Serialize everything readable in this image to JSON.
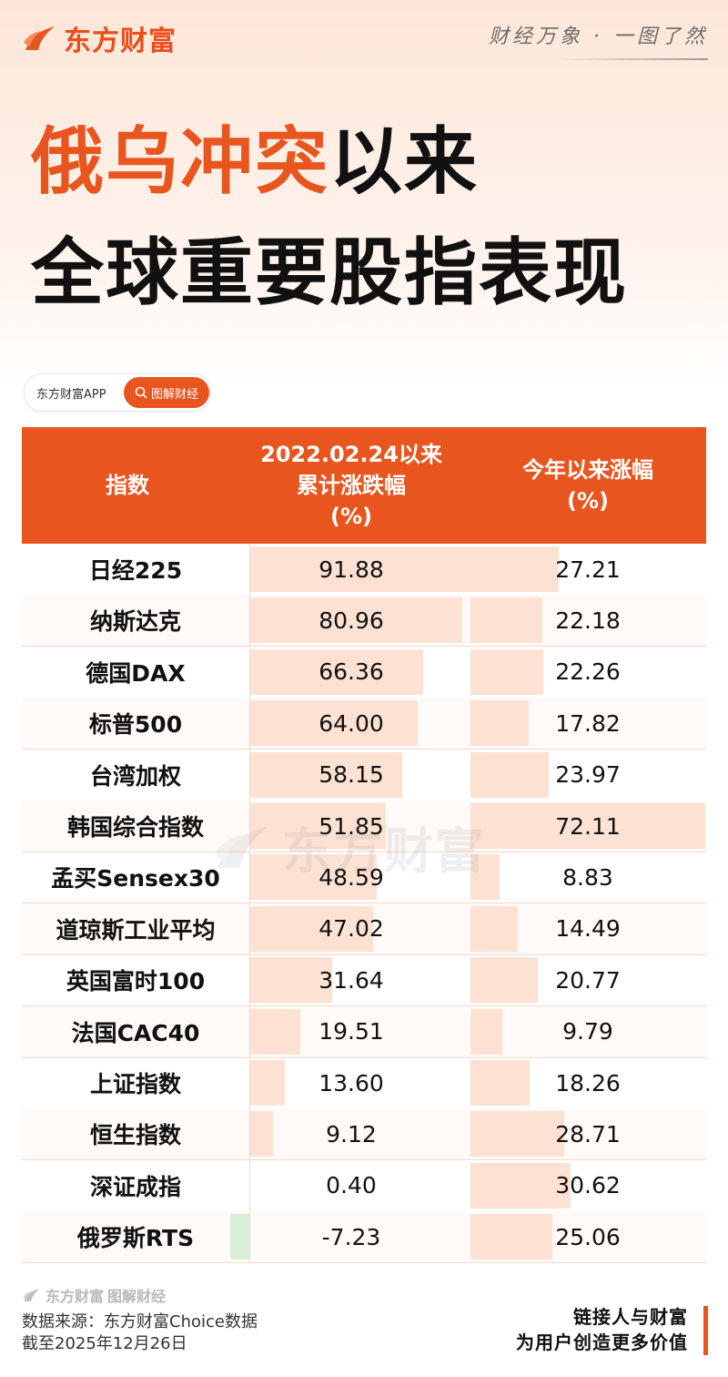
{
  "brand": {
    "name": "东方财富",
    "slogan": "财经万象 · 一图了然"
  },
  "title": {
    "line1_highlight": "俄乌冲突",
    "line1_rest": "以来",
    "line2": "全球重要股指表现"
  },
  "search_pill": {
    "app_label": "东方财富APP",
    "button_label": "图解财经"
  },
  "table": {
    "headers": {
      "index": "指数",
      "cumulative": [
        "2022.02.24以来",
        "累计涨跌幅",
        "(%)"
      ],
      "ytd": [
        "今年以来涨幅",
        "(%)"
      ]
    }
  },
  "chart_data": {
    "type": "table",
    "columns": [
      "指数",
      "2022.02.24以来累计涨跌幅(%)",
      "今年以来涨幅(%)"
    ],
    "rows": [
      {
        "name": "日经225",
        "cumulative": 91.88,
        "ytd": 27.21
      },
      {
        "name": "纳斯达克",
        "cumulative": 80.96,
        "ytd": 22.18
      },
      {
        "name": "德国DAX",
        "cumulative": 66.36,
        "ytd": 22.26
      },
      {
        "name": "标普500",
        "cumulative": 64.0,
        "ytd": 17.82
      },
      {
        "name": "台湾加权",
        "cumulative": 58.15,
        "ytd": 23.97
      },
      {
        "name": "韩国综合指数",
        "cumulative": 51.85,
        "ytd": 72.11
      },
      {
        "name": "孟买Sensex30",
        "cumulative": 48.59,
        "ytd": 8.83
      },
      {
        "name": "道琼斯工业平均",
        "cumulative": 47.02,
        "ytd": 14.49
      },
      {
        "name": "英国富时100",
        "cumulative": 31.64,
        "ytd": 20.77
      },
      {
        "name": "法国CAC40",
        "cumulative": 19.51,
        "ytd": 9.79
      },
      {
        "name": "上证指数",
        "cumulative": 13.6,
        "ytd": 18.26
      },
      {
        "name": "恒生指数",
        "cumulative": 9.12,
        "ytd": 28.71
      },
      {
        "name": "深证成指",
        "cumulative": 0.4,
        "ytd": 30.62
      },
      {
        "name": "俄罗斯RTS",
        "cumulative": -7.23,
        "ytd": 25.06
      }
    ]
  },
  "footer": {
    "logo_brand": "东方财富",
    "logo_section": "图解财经",
    "source": "数据来源：东方财富Choice数据",
    "as_of": "截至2025年12月26日",
    "tagline1": "链接人与财富",
    "tagline2": "为用户创造更多价值"
  },
  "colors": {
    "accent": "#e9551e",
    "bar_positive": "#fde1d3",
    "bar_negative": "#d8eed8"
  }
}
